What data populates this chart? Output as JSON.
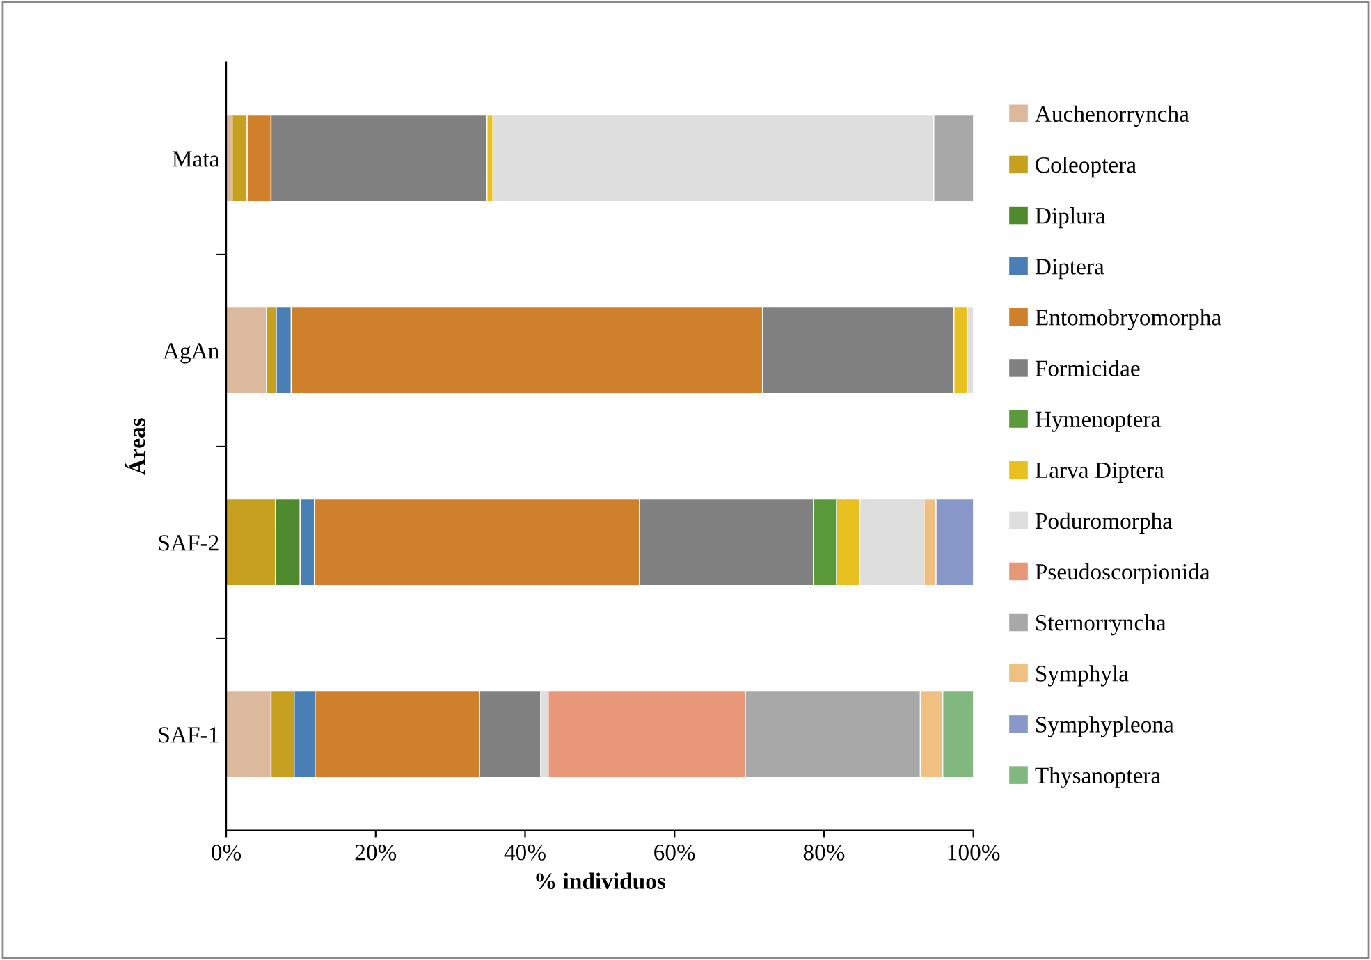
{
  "chart_data": {
    "type": "bar",
    "orientation": "horizontal",
    "stacked": true,
    "xlabel": "% individuos",
    "ylabel": "Áreas",
    "categories": [
      "Mata",
      "AgAn",
      "SAF-2",
      "SAF-1"
    ],
    "xlim": [
      0,
      100
    ],
    "xticks": [
      {
        "value": 0,
        "label": "0%"
      },
      {
        "value": 20,
        "label": "20%"
      },
      {
        "value": 40,
        "label": "40%"
      },
      {
        "value": 60,
        "label": "60%"
      },
      {
        "value": 80,
        "label": "80%"
      },
      {
        "value": 100,
        "label": "100%"
      }
    ],
    "grid": false,
    "legend": "right",
    "series": [
      {
        "name": "Auchenorryncha",
        "color": "#dcb89c",
        "values": [
          0.8,
          5.4,
          null,
          6.0
        ]
      },
      {
        "name": "Coleoptera",
        "color": "#c8a020",
        "values": [
          2.0,
          1.3,
          6.6,
          3.1
        ]
      },
      {
        "name": "Diplura",
        "color": "#4f8a2f",
        "values": [
          null,
          null,
          3.3,
          null
        ]
      },
      {
        "name": "Diptera",
        "color": "#4a7fb5",
        "values": [
          null,
          2.0,
          1.9,
          2.8
        ]
      },
      {
        "name": "Entomobryomorpha",
        "color": "#d0802a",
        "values": [
          3.2,
          63.1,
          43.5,
          22.0
        ]
      },
      {
        "name": "Formicidae",
        "color": "#808080",
        "values": [
          28.9,
          25.6,
          23.3,
          8.2
        ]
      },
      {
        "name": "Hymenoptera",
        "color": "#5a9a3a",
        "values": [
          null,
          null,
          3.1,
          null
        ]
      },
      {
        "name": "Larva Diptera",
        "color": "#e8c020",
        "values": [
          0.8,
          1.8,
          3.1,
          null
        ]
      },
      {
        "name": "Poduromorpha",
        "color": "#dedede",
        "values": [
          59.0,
          0.8,
          8.6,
          1.0
        ]
      },
      {
        "name": "Pseudoscorpionida",
        "color": "#e89878",
        "values": [
          null,
          null,
          null,
          26.4
        ]
      },
      {
        "name": "Sternorryncha",
        "color": "#a8a8a8",
        "values": [
          5.3,
          null,
          null,
          23.4
        ]
      },
      {
        "name": "Symphyla",
        "color": "#f0c080",
        "values": [
          null,
          null,
          1.6,
          3.0
        ]
      },
      {
        "name": "Symphypleona",
        "color": "#8898c8",
        "values": [
          null,
          null,
          5.0,
          null
        ]
      },
      {
        "name": "Thysanoptera",
        "color": "#80b880",
        "values": [
          null,
          null,
          null,
          4.1
        ]
      }
    ]
  }
}
